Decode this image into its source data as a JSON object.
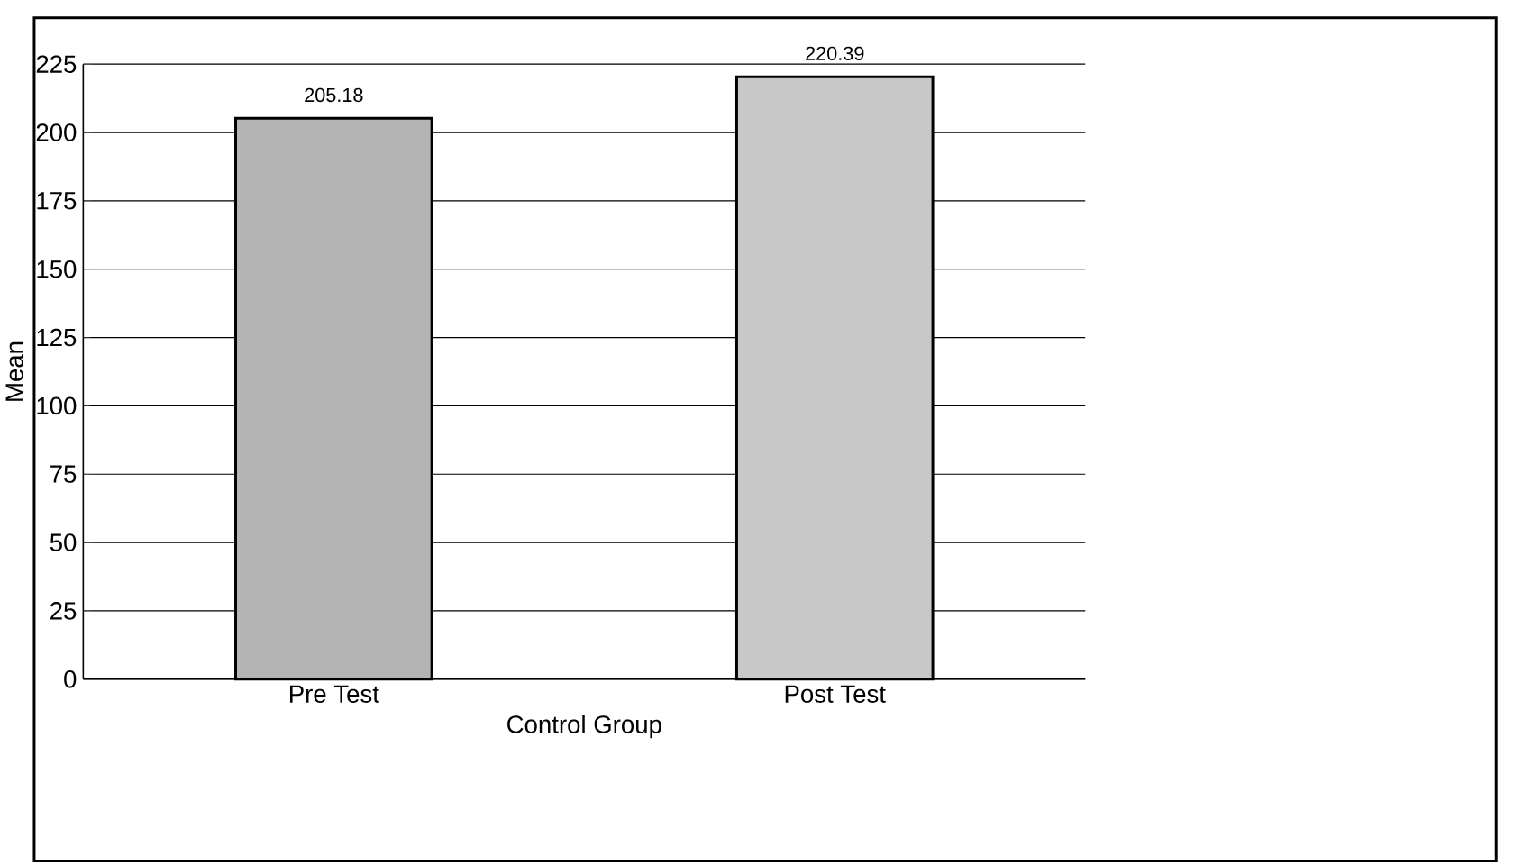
{
  "chart_data": {
    "type": "bar",
    "xlabel": "Control Group",
    "ylabel": "Mean",
    "categories": [
      "Pre Test",
      "Post Test"
    ],
    "values": [
      205.18,
      220.39
    ],
    "colors": [
      "#b4b4b4",
      "#c8c8c8"
    ],
    "ylim": [
      0,
      225
    ],
    "yticks": [
      0,
      25,
      50,
      75,
      100,
      125,
      150,
      175,
      200,
      225
    ],
    "grid": "y",
    "data_labels": true
  }
}
